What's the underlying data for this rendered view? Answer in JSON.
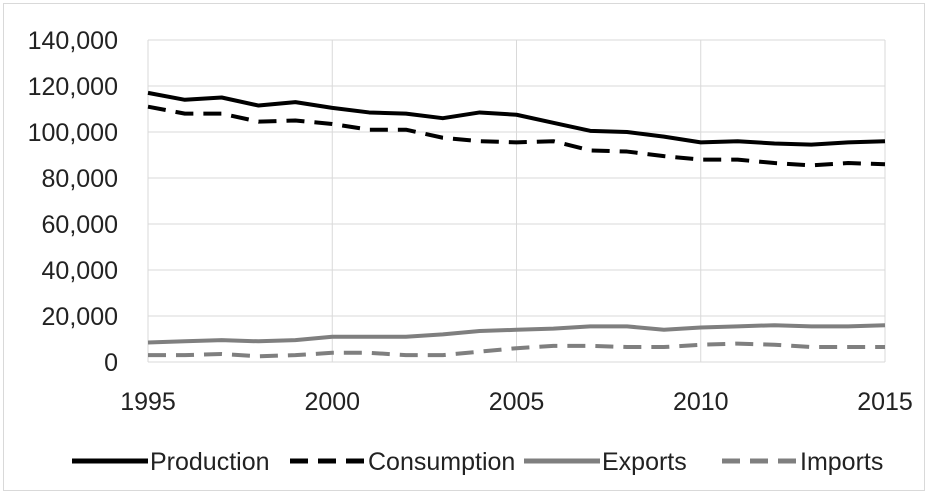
{
  "chart_data": {
    "type": "line",
    "title": "",
    "xlabel": "",
    "ylabel": "",
    "x": [
      1995,
      1996,
      1997,
      1998,
      1999,
      2000,
      2001,
      2002,
      2003,
      2004,
      2005,
      2006,
      2007,
      2008,
      2009,
      2010,
      2011,
      2012,
      2013,
      2014,
      2015
    ],
    "xlim": [
      1995,
      2015
    ],
    "ylim": [
      0,
      140000
    ],
    "x_ticks": [
      "1995",
      "2000",
      "2005",
      "2010",
      "2015"
    ],
    "y_ticks": [
      "0",
      "20,000",
      "40,000",
      "60,000",
      "80,000",
      "100,000",
      "120,000",
      "140,000"
    ],
    "grid": "vertical and horizontal",
    "legend_position": "bottom",
    "series": [
      {
        "name": "Production",
        "color": "#000000",
        "dash": "solid",
        "values": [
          117000,
          114000,
          115000,
          111500,
          113000,
          110500,
          108500,
          108000,
          106000,
          108500,
          107500,
          104000,
          100500,
          100000,
          98000,
          95500,
          96000,
          95000,
          94500,
          95500,
          96000
        ]
      },
      {
        "name": "Consumption",
        "color": "#000000",
        "dash": "dashed",
        "values": [
          111000,
          108000,
          108000,
          104500,
          105000,
          103500,
          101000,
          101000,
          97500,
          96000,
          95500,
          96000,
          92000,
          91500,
          89500,
          88000,
          88000,
          86500,
          85500,
          86500,
          86000
        ]
      },
      {
        "name": "Exports",
        "color": "#7f7f7f",
        "dash": "solid",
        "values": [
          8500,
          9000,
          9500,
          9000,
          9500,
          11000,
          11000,
          11000,
          12000,
          13500,
          14000,
          14500,
          15500,
          15500,
          14000,
          15000,
          15500,
          16000,
          15500,
          15500,
          16000
        ]
      },
      {
        "name": "Imports",
        "color": "#7f7f7f",
        "dash": "dashed",
        "values": [
          3000,
          3000,
          3500,
          2500,
          3000,
          4000,
          4000,
          3000,
          3000,
          4500,
          6000,
          7000,
          7000,
          6500,
          6500,
          7500,
          8000,
          7500,
          6500,
          6500,
          6500
        ]
      }
    ]
  }
}
